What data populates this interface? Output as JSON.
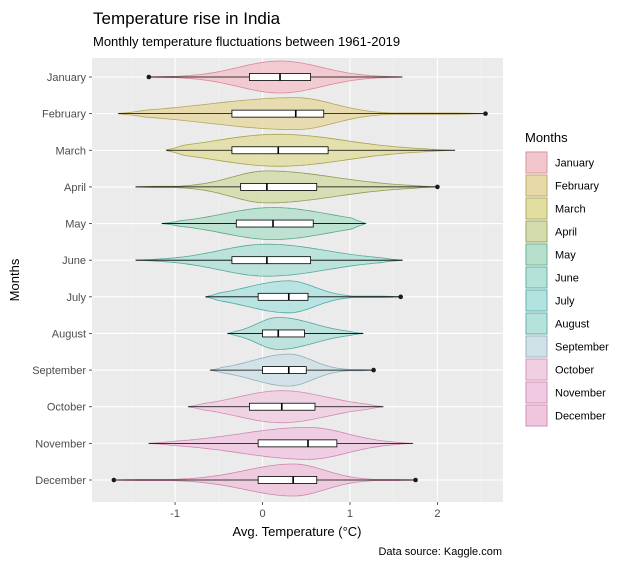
{
  "chart_data": {
    "type": "violin",
    "title": "Temperature rise in India",
    "subtitle": "Monthly temperature fluctuations between 1961-2019",
    "xlabel": "Avg. Temperature (°C)",
    "ylabel": "Months",
    "caption": "Data source: Kaggle.com",
    "xlim": [
      -1.95,
      2.75
    ],
    "xticks": [
      -1,
      0,
      1,
      2
    ],
    "xtick_labels": [
      "-1",
      "0",
      "1",
      "2"
    ],
    "grid": true,
    "legend": {
      "title": "Months",
      "placement": "right"
    },
    "series": [
      {
        "name": "January",
        "color": "#f2c6cc",
        "stroke": "#d98a98",
        "min": -1.3,
        "q1": -0.15,
        "median": 0.2,
        "q3": 0.55,
        "max": 1.6,
        "outliers": [
          -1.3
        ]
      },
      {
        "name": "February",
        "color": "#e6d9a6",
        "stroke": "#b5a55c",
        "min": -1.65,
        "q1": -0.35,
        "median": 0.38,
        "q3": 0.7,
        "max": 2.55,
        "outliers": [
          2.55
        ]
      },
      {
        "name": "March",
        "color": "#e2dea2",
        "stroke": "#a9a24f",
        "min": -1.1,
        "q1": -0.35,
        "median": 0.18,
        "q3": 0.75,
        "max": 2.2,
        "outliers": []
      },
      {
        "name": "April",
        "color": "#d3dcaa",
        "stroke": "#8e9a55",
        "min": -1.45,
        "q1": -0.25,
        "median": 0.05,
        "q3": 0.62,
        "max": 2.0,
        "outliers": [
          2.0
        ]
      },
      {
        "name": "May",
        "color": "#b6e0cc",
        "stroke": "#5aa887",
        "min": -1.15,
        "q1": -0.3,
        "median": 0.12,
        "q3": 0.58,
        "max": 1.18,
        "outliers": []
      },
      {
        "name": "June",
        "color": "#b3e2d8",
        "stroke": "#55a897",
        "min": -1.45,
        "q1": -0.35,
        "median": 0.05,
        "q3": 0.55,
        "max": 1.6,
        "outliers": []
      },
      {
        "name": "July",
        "color": "#b2e3e0",
        "stroke": "#4fa9a4",
        "min": -0.65,
        "q1": -0.05,
        "median": 0.3,
        "q3": 0.52,
        "max": 1.58,
        "outliers": [
          1.58
        ]
      },
      {
        "name": "August",
        "color": "#b6e2dc",
        "stroke": "#55a69c",
        "min": -0.4,
        "q1": 0.0,
        "median": 0.18,
        "q3": 0.48,
        "max": 1.15,
        "outliers": []
      },
      {
        "name": "September",
        "color": "#cfe0e6",
        "stroke": "#8fb0bd",
        "min": -0.6,
        "q1": 0.0,
        "median": 0.3,
        "q3": 0.5,
        "max": 1.27,
        "outliers": [
          1.27
        ]
      },
      {
        "name": "October",
        "color": "#f0cfe2",
        "stroke": "#d38db3",
        "min": -0.85,
        "q1": -0.15,
        "median": 0.22,
        "q3": 0.6,
        "max": 1.38,
        "outliers": []
      },
      {
        "name": "November",
        "color": "#f0c9e2",
        "stroke": "#cf86b2",
        "min": -1.3,
        "q1": -0.05,
        "median": 0.52,
        "q3": 0.85,
        "max": 1.72,
        "outliers": []
      },
      {
        "name": "December",
        "color": "#f0c6de",
        "stroke": "#cf85ac",
        "min": -1.7,
        "q1": -0.05,
        "median": 0.35,
        "q3": 0.62,
        "max": 1.75,
        "outliers": [
          -1.7,
          1.75
        ]
      }
    ]
  }
}
